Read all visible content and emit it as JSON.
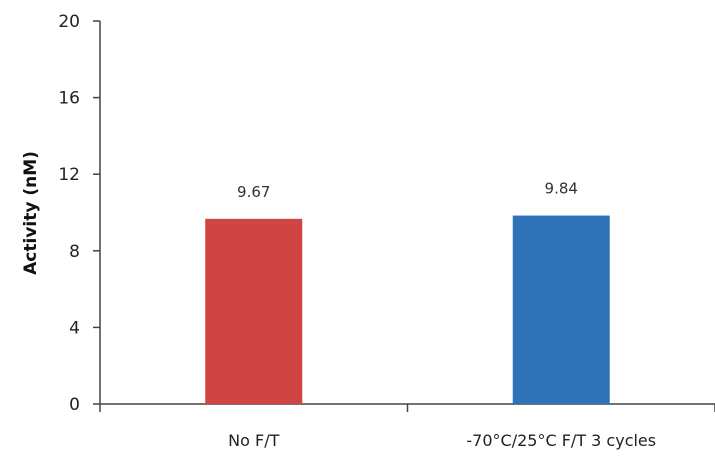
{
  "chart_data": {
    "type": "bar",
    "title": "",
    "xlabel": "",
    "ylabel": "Activity (nM)",
    "ylim": [
      0,
      20
    ],
    "yticks": [
      0,
      4,
      8,
      12,
      16,
      20
    ],
    "categories": [
      "No F/T",
      "-70°C/25°C F/T 3 cycles"
    ],
    "values": [
      9.67,
      9.84
    ],
    "data_labels": [
      "9.67",
      "9.84"
    ],
    "colors": [
      "#d04444",
      "#2e72b8"
    ],
    "grid": false,
    "legend": "none"
  }
}
